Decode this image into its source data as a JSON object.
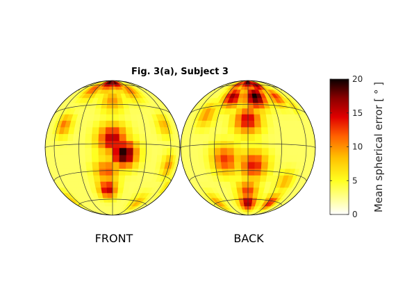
{
  "chart_data": {
    "type": "heatmap",
    "title": "Fig. 3(a), Subject 3",
    "panels": [
      {
        "label": "FRONT",
        "hotspots": [
          {
            "lon": -10,
            "lat": 80,
            "value": 20,
            "spread": 14
          },
          {
            "lon": 10,
            "lat": 78,
            "value": 19,
            "spread": 12
          },
          {
            "lon": -35,
            "lat": 62,
            "value": 12,
            "spread": 10
          },
          {
            "lon": 30,
            "lat": 60,
            "value": 11,
            "spread": 10
          },
          {
            "lon": 0,
            "lat": 45,
            "value": 10,
            "spread": 9
          },
          {
            "lon": -50,
            "lat": 20,
            "value": 11,
            "spread": 7
          },
          {
            "lon": 0,
            "lat": 8,
            "value": 16,
            "spread": 9
          },
          {
            "lon": 10,
            "lat": -5,
            "value": 20,
            "spread": 8
          },
          {
            "lon": -5,
            "lat": -20,
            "value": 12,
            "spread": 8
          },
          {
            "lon": -5,
            "lat": -38,
            "value": 16,
            "spread": 7
          },
          {
            "lon": 60,
            "lat": -15,
            "value": 10,
            "spread": 7
          },
          {
            "lon": 55,
            "lat": 20,
            "value": 9,
            "spread": 7
          },
          {
            "lon": -70,
            "lat": -50,
            "value": 8,
            "spread": 7
          },
          {
            "lon": 40,
            "lat": -55,
            "value": 9,
            "spread": 8
          },
          {
            "lon": 75,
            "lat": -35,
            "value": 7,
            "spread": 6
          }
        ]
      },
      {
        "label": "BACK",
        "hotspots": [
          {
            "lon": 0,
            "lat": 80,
            "value": 20,
            "spread": 14
          },
          {
            "lon": -25,
            "lat": 72,
            "value": 14,
            "spread": 10
          },
          {
            "lon": 20,
            "lat": 70,
            "value": 18,
            "spread": 10
          },
          {
            "lon": -20,
            "lat": 50,
            "value": 17,
            "spread": 9
          },
          {
            "lon": 10,
            "lat": 50,
            "value": 20,
            "spread": 10
          },
          {
            "lon": 40,
            "lat": 50,
            "value": 13,
            "spread": 8
          },
          {
            "lon": -45,
            "lat": 30,
            "value": 10,
            "spread": 8
          },
          {
            "lon": 0,
            "lat": 25,
            "value": 15,
            "spread": 9
          },
          {
            "lon": -20,
            "lat": -10,
            "value": 13,
            "spread": 9
          },
          {
            "lon": 5,
            "lat": -15,
            "value": 14,
            "spread": 9
          },
          {
            "lon": 0,
            "lat": -40,
            "value": 13,
            "spread": 8
          },
          {
            "lon": 0,
            "lat": -55,
            "value": 17,
            "spread": 9
          },
          {
            "lon": 35,
            "lat": -55,
            "value": 14,
            "spread": 8
          },
          {
            "lon": -50,
            "lat": -55,
            "value": 10,
            "spread": 8
          },
          {
            "lon": 40,
            "lat": -30,
            "value": 9,
            "spread": 7
          },
          {
            "lon": 60,
            "lat": 40,
            "value": 7,
            "spread": 6
          }
        ]
      }
    ],
    "grid": true,
    "colorbar": {
      "label": "Mean spherical error [ ° ]",
      "ticks": [
        0,
        5,
        10,
        15,
        20
      ],
      "range": [
        0,
        20
      ],
      "colormap": "hot-reversed"
    }
  }
}
